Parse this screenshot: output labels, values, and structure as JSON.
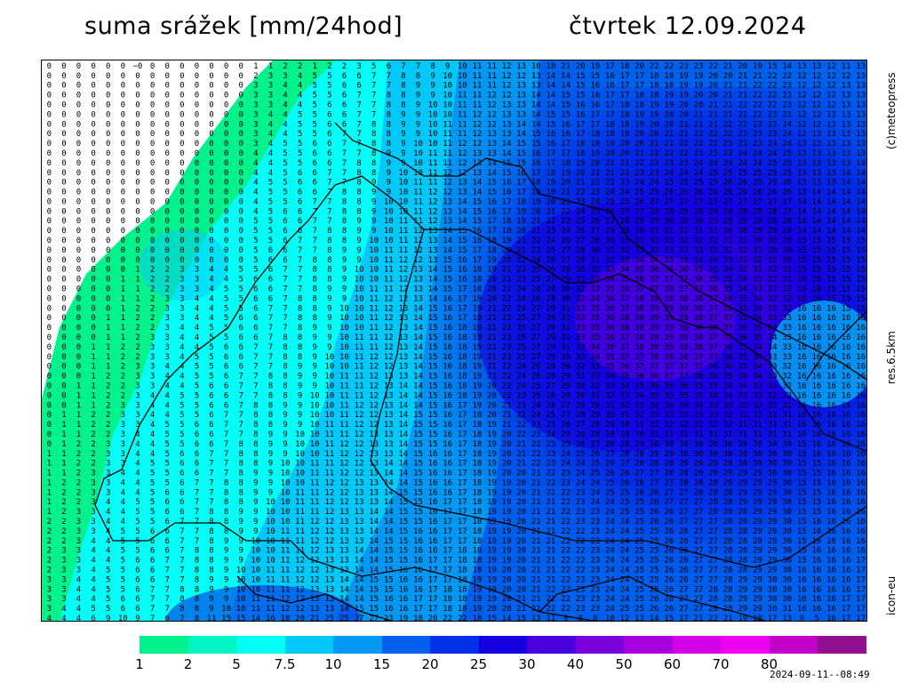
{
  "header": {
    "title_left": "suma srážek [mm/24hod]",
    "title_right": "čtvrtek 12.09.2024"
  },
  "side_labels": {
    "credit": "(c)meteopress",
    "resolution": "res.6.5km",
    "model": "icon-eu"
  },
  "legend": {
    "labels": [
      "1",
      "2",
      "5",
      "7.5",
      "10",
      "15",
      "20",
      "25",
      "30",
      "40",
      "50",
      "60",
      "70",
      "80"
    ],
    "colors": [
      "#00f28c",
      "#00f5c4",
      "#00fff6",
      "#00c8f8",
      "#0098f2",
      "#0060ee",
      "#0030e8",
      "#1400e0",
      "#4a00de",
      "#7a00dc",
      "#a800dc",
      "#d400e8",
      "#f000f0",
      "#c000c8",
      "#901090"
    ]
  },
  "timestamp": "2024-09-11--08:49",
  "map": {
    "description_values": {
      "row_first": "0 0 0 0 0 0 −0 0 0 0 0 0 0 0 1 1 2 2 1 2 2 3 5 6 7 7 8 9 10 11 11 12 13 16 18 21 20 19 17 18 20 22 22 23 23 22 21 20 19 15 14 13 13 12 11",
      "row_last": "4 4 4 6 9 10 9 7 6 7 8 11 15 15 14 16 18 20 21 25 25 27 27 23 19 18 20 22 22 18 15 14 15 13 11 9 8 8 10 12 13 14 15 17 21 22 21 19 18 17 13 9 5"
    }
  }
}
